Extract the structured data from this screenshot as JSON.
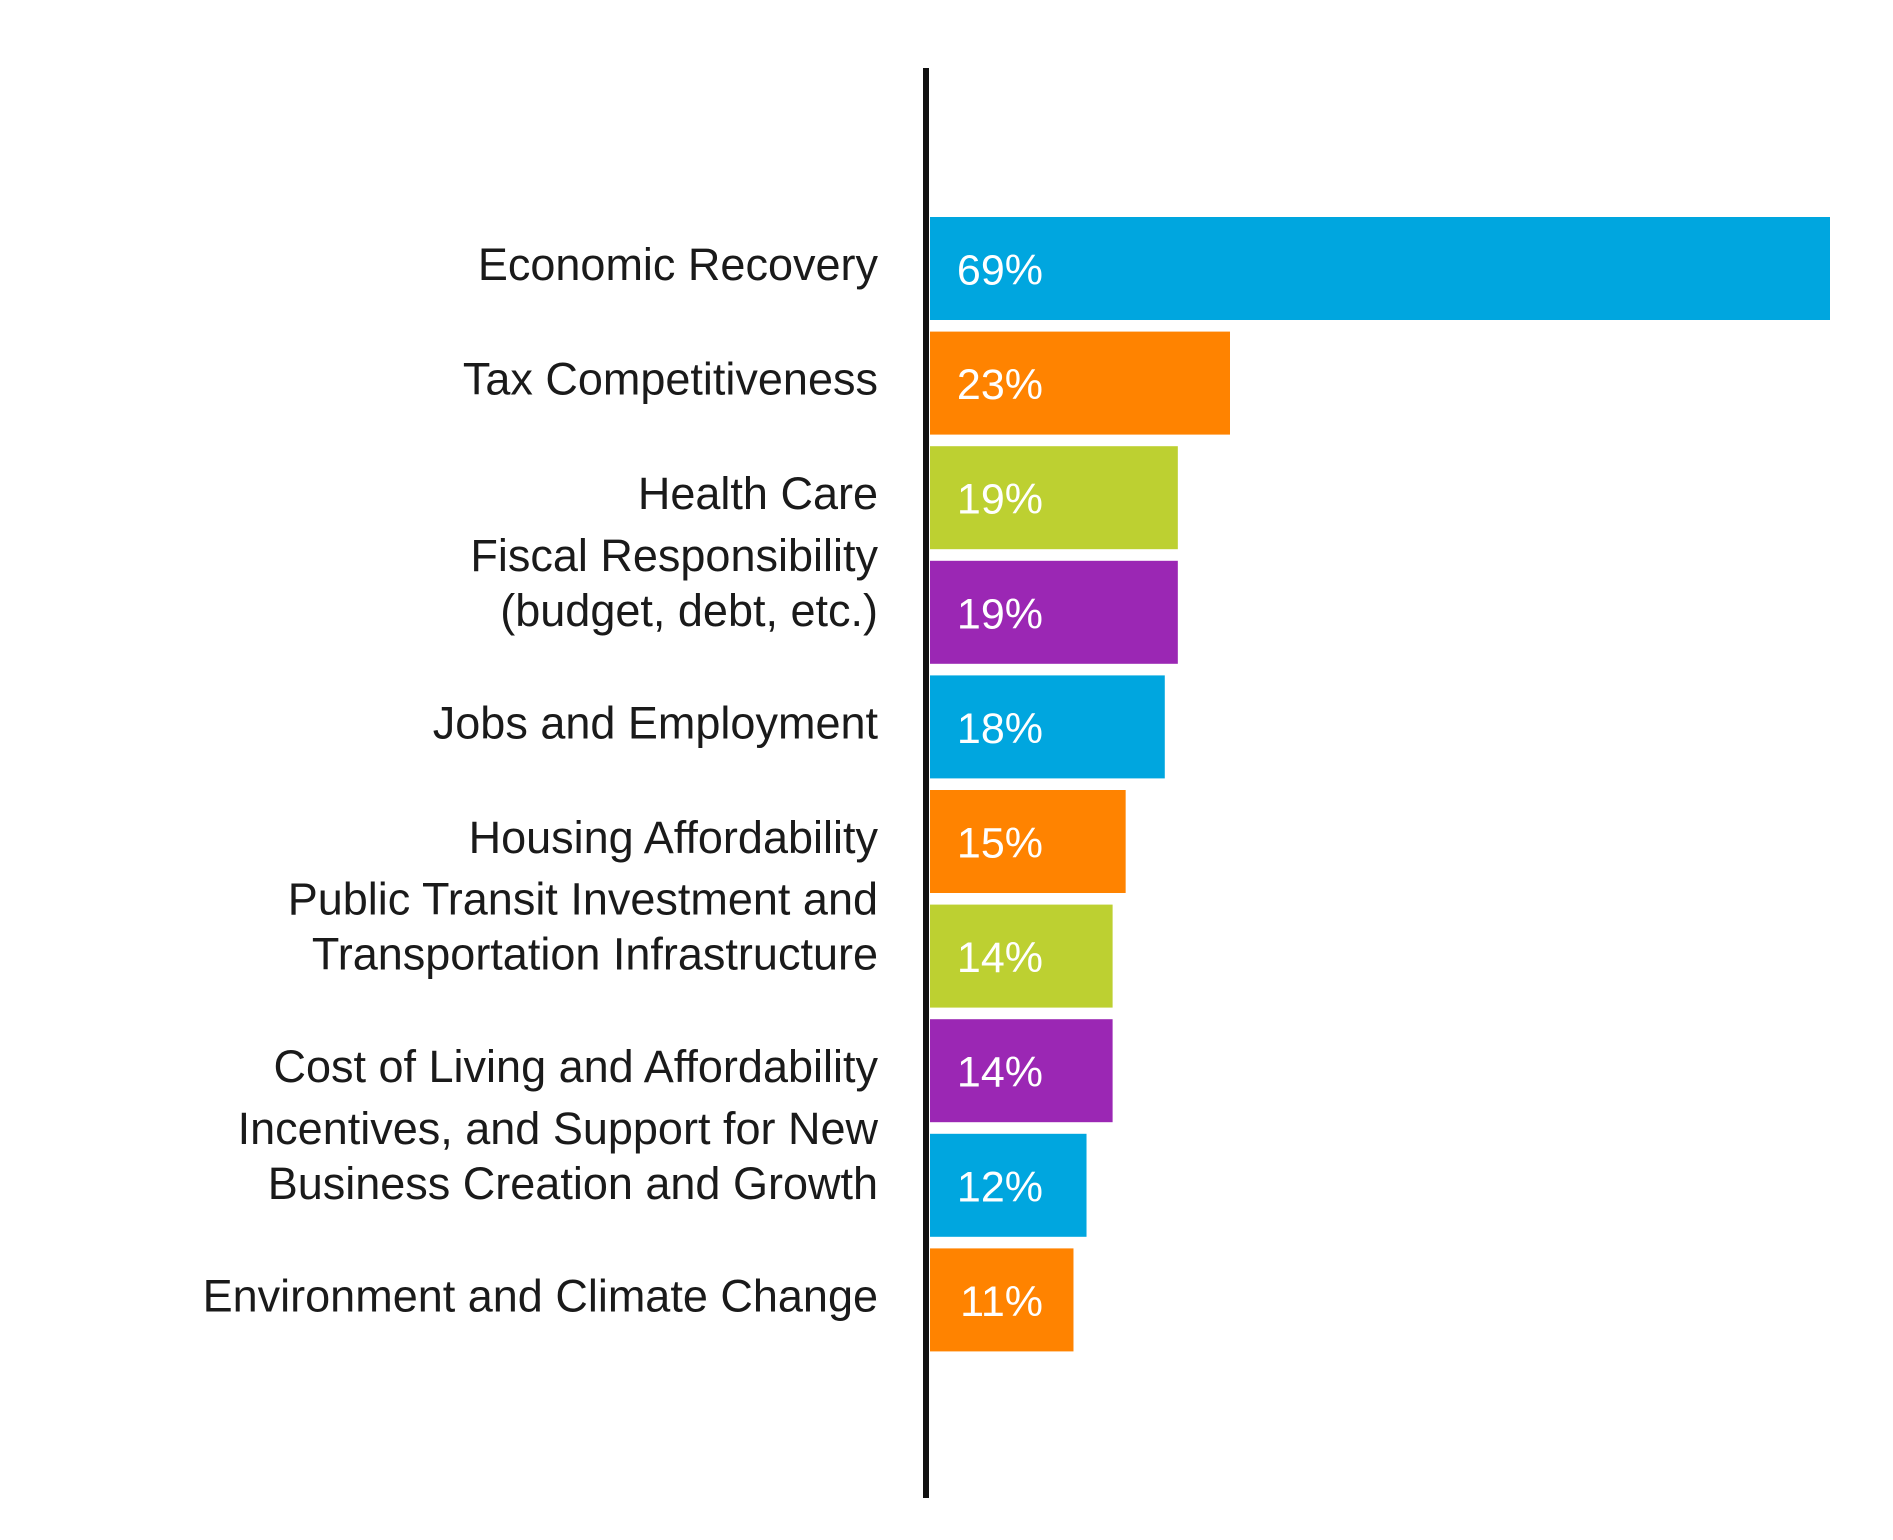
{
  "chart_data": {
    "type": "bar",
    "orientation": "horizontal",
    "categories": [
      [
        "Economic Recovery"
      ],
      [
        "Tax Competitiveness"
      ],
      [
        "Health Care"
      ],
      [
        "Fiscal Responsibility",
        "(budget, debt, etc.)"
      ],
      [
        "Jobs and Employment"
      ],
      [
        "Housing Affordability"
      ],
      [
        "Public Transit Investment and",
        "Transportation Infrastructure"
      ],
      [
        "Cost of Living and Affordability"
      ],
      [
        "Incentives, and Support for New",
        "Business Creation and Growth"
      ],
      [
        "Environment and Climate Change"
      ]
    ],
    "values": [
      69,
      23,
      19,
      19,
      18,
      15,
      14,
      14,
      12,
      11
    ],
    "value_labels": [
      "69%",
      "23%",
      "19%",
      "19%",
      "18%",
      "15%",
      "14%",
      "14%",
      "12%",
      "11%"
    ],
    "colors": [
      "#00a6df",
      "#ff8300",
      "#bdd031",
      "#9b27b4",
      "#00a6df",
      "#ff8300",
      "#bdd031",
      "#9b27b4",
      "#00a6df",
      "#ff8300"
    ],
    "xlim": [
      0,
      69
    ],
    "grid": false,
    "legend": "none",
    "title": "",
    "xlabel": "",
    "ylabel": ""
  }
}
